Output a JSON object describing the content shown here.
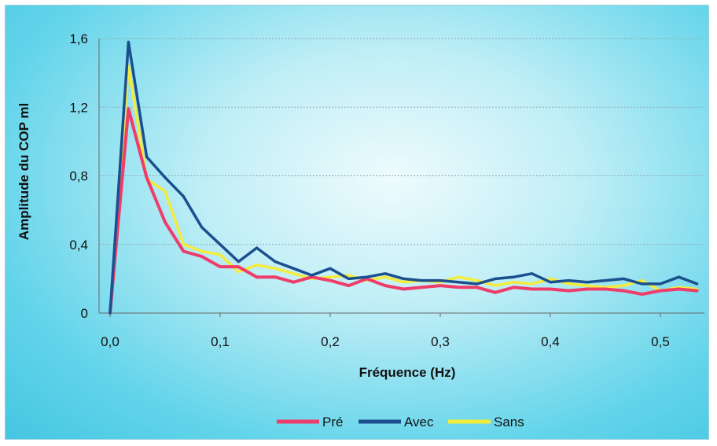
{
  "chart_data": {
    "type": "line",
    "title": "",
    "xlabel": "Fréquence (Hz)",
    "ylabel": "Amplitude du COP ml",
    "xlim": [
      -0.01,
      0.54
    ],
    "ylim": [
      0,
      1.6
    ],
    "x_ticks": [
      "0,0",
      "0,1",
      "0,2",
      "0,3",
      "0,4",
      "0,5"
    ],
    "x_tick_values": [
      0,
      0.1,
      0.2,
      0.3,
      0.4,
      0.5
    ],
    "y_ticks": [
      "0",
      "0,4",
      "0,8",
      "1,2",
      "1,6"
    ],
    "y_tick_values": [
      0,
      0.4,
      0.8,
      1.2,
      1.6
    ],
    "grid": "horizontal",
    "legend_position": "bottom",
    "x": [
      0,
      0.0167,
      0.0333,
      0.05,
      0.0667,
      0.0833,
      0.1,
      0.1167,
      0.1333,
      0.15,
      0.1667,
      0.1833,
      0.2,
      0.2167,
      0.2333,
      0.25,
      0.2667,
      0.2833,
      0.3,
      0.3167,
      0.3333,
      0.35,
      0.3667,
      0.3833,
      0.4,
      0.4167,
      0.4333,
      0.45,
      0.4667,
      0.4833,
      0.5,
      0.5167,
      0.5333
    ],
    "series": [
      {
        "name": "Pré",
        "color": "#ee3d6a",
        "values": [
          0,
          1.19,
          0.79,
          0.53,
          0.36,
          0.33,
          0.27,
          0.27,
          0.21,
          0.21,
          0.18,
          0.21,
          0.19,
          0.16,
          0.2,
          0.16,
          0.14,
          0.15,
          0.16,
          0.15,
          0.15,
          0.12,
          0.15,
          0.14,
          0.14,
          0.13,
          0.14,
          0.14,
          0.13,
          0.11,
          0.13,
          0.14,
          0.13
        ]
      },
      {
        "name": "Avec",
        "color": "#1b4f8e",
        "values": [
          0,
          1.58,
          0.91,
          0.79,
          0.68,
          0.5,
          0.4,
          0.3,
          0.38,
          0.3,
          0.26,
          0.22,
          0.26,
          0.2,
          0.21,
          0.23,
          0.2,
          0.19,
          0.19,
          0.18,
          0.17,
          0.2,
          0.21,
          0.23,
          0.18,
          0.19,
          0.18,
          0.19,
          0.2,
          0.17,
          0.17,
          0.21,
          0.17
        ]
      },
      {
        "name": "Sans",
        "color": "#f4ec3c",
        "values": [
          0,
          1.44,
          0.78,
          0.71,
          0.4,
          0.36,
          0.34,
          0.24,
          0.28,
          0.26,
          0.23,
          0.2,
          0.21,
          0.22,
          0.19,
          0.21,
          0.18,
          0.19,
          0.18,
          0.21,
          0.19,
          0.16,
          0.18,
          0.17,
          0.2,
          0.17,
          0.16,
          0.15,
          0.16,
          0.19,
          0.13,
          0.15,
          0.14
        ]
      }
    ]
  }
}
